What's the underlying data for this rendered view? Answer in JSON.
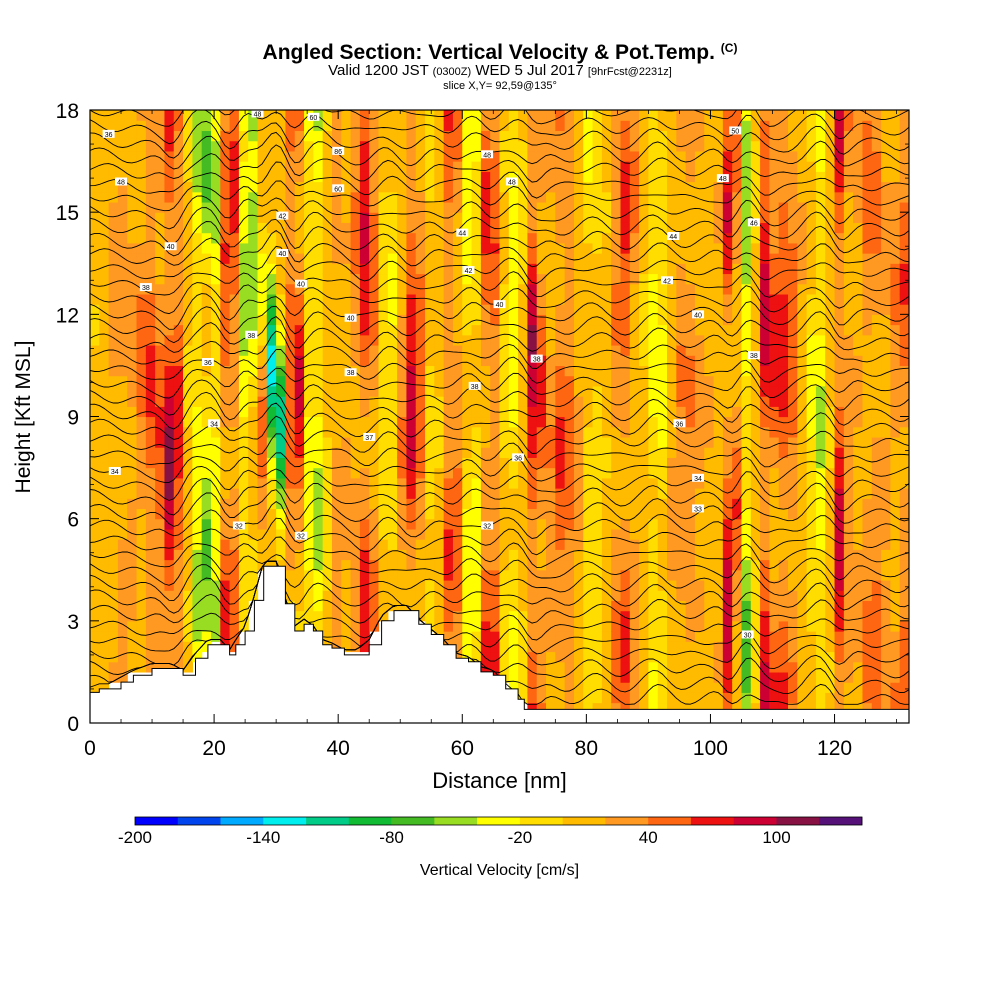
{
  "header": {
    "title": "Angled Section: Vertical Velocity & Pot.Temp.",
    "title_tag": "(C)",
    "valid_prefix": "Valid 1200 JST",
    "valid_zone": "(0300Z)",
    "valid_date": "WED 5 Jul 2017",
    "forecast_info": "[9hrFcst@2231z]",
    "slice_info": "slice X,Y= 92,59@135°"
  },
  "chart_data": {
    "type": "heatmap",
    "xlabel": "Distance [nm]",
    "ylabel": "Height [Kft MSL]",
    "xlim": [
      0,
      132
    ],
    "ylim": [
      0,
      18
    ],
    "x_ticks": [
      0,
      20,
      40,
      60,
      80,
      100,
      120
    ],
    "y_ticks": [
      0,
      3,
      6,
      9,
      12,
      15,
      18
    ],
    "colorbar": {
      "label": "Vertical Velocity [cm/s]",
      "min": -200,
      "max": 140,
      "step": 20,
      "tick_values": [
        -200,
        -140,
        -80,
        -20,
        40,
        100
      ],
      "colors": [
        "#0000ff",
        "#0044ee",
        "#00aaff",
        "#00eeee",
        "#00cc88",
        "#11bb33",
        "#44bb22",
        "#99dd22",
        "#ffff00",
        "#ffdd00",
        "#ffbb00",
        "#ff9922",
        "#ff6611",
        "#ee1111",
        "#cc0033",
        "#881144",
        "#551177"
      ]
    },
    "cells": {
      "x_step_nm": 1.5,
      "y_step_kft": 0.3,
      "note": "colour values reconstructed as vertical plume bands of vertical velocity (cm/s)"
    },
    "bands": [
      {
        "x": 5,
        "w": 2.0,
        "v": 25
      },
      {
        "x": 10,
        "w": 2.5,
        "v": 55
      },
      {
        "x": 13.5,
        "w": 1.3,
        "v": 95
      },
      {
        "x": 17.5,
        "w": 1.5,
        "v": -60
      },
      {
        "x": 20,
        "w": 1.2,
        "v": -70
      },
      {
        "x": 22.5,
        "w": 1.5,
        "v": 80
      },
      {
        "x": 25.5,
        "w": 1.5,
        "v": -90
      },
      {
        "x": 27.5,
        "w": 1.5,
        "v": 90
      },
      {
        "x": 30,
        "w": 1.6,
        "v": -160
      },
      {
        "x": 33,
        "w": 1.3,
        "v": 110
      },
      {
        "x": 36,
        "w": 2.0,
        "v": -60
      },
      {
        "x": 40,
        "w": 2.0,
        "v": 20
      },
      {
        "x": 44.5,
        "w": 1.8,
        "v": 80
      },
      {
        "x": 48,
        "w": 1.8,
        "v": -40
      },
      {
        "x": 52,
        "w": 2.0,
        "v": 85
      },
      {
        "x": 55,
        "w": 1.8,
        "v": -30
      },
      {
        "x": 58.5,
        "w": 1.8,
        "v": 60
      },
      {
        "x": 61.5,
        "w": 1.8,
        "v": -60
      },
      {
        "x": 64.5,
        "w": 1.8,
        "v": 75
      },
      {
        "x": 68,
        "w": 2.0,
        "v": -50
      },
      {
        "x": 71.5,
        "w": 1.3,
        "v": 95
      },
      {
        "x": 76.5,
        "w": 2.5,
        "v": 55
      },
      {
        "x": 81,
        "w": 2.0,
        "v": -30
      },
      {
        "x": 86,
        "w": 2.0,
        "v": 55
      },
      {
        "x": 91.5,
        "w": 1.5,
        "v": -50
      },
      {
        "x": 96,
        "w": 2.5,
        "v": 40
      },
      {
        "x": 103.5,
        "w": 1.2,
        "v": 100
      },
      {
        "x": 106,
        "w": 1.8,
        "v": -80
      },
      {
        "x": 108.5,
        "w": 1.5,
        "v": 90
      },
      {
        "x": 112,
        "w": 2.0,
        "v": 65
      },
      {
        "x": 117.5,
        "w": 1.5,
        "v": -55
      },
      {
        "x": 121,
        "w": 1.2,
        "v": 85
      },
      {
        "x": 126,
        "w": 2.5,
        "v": 40
      },
      {
        "x": 131,
        "w": 1.5,
        "v": 50
      }
    ],
    "terrain_kft": [
      [
        0,
        0.9
      ],
      [
        1.5,
        1.0
      ],
      [
        3,
        1.0
      ],
      [
        5,
        1.2
      ],
      [
        7,
        1.4
      ],
      [
        10,
        1.6
      ],
      [
        13,
        1.6
      ],
      [
        15,
        1.4
      ],
      [
        17,
        1.9
      ],
      [
        19,
        2.3
      ],
      [
        21,
        2.3
      ],
      [
        22.5,
        2.0
      ],
      [
        23.5,
        2.3
      ],
      [
        25,
        2.7
      ],
      [
        26.5,
        3.6
      ],
      [
        28,
        4.6
      ],
      [
        30,
        4.6
      ],
      [
        31.5,
        3.5
      ],
      [
        33,
        2.7
      ],
      [
        34.5,
        2.9
      ],
      [
        36,
        2.7
      ],
      [
        37.5,
        2.3
      ],
      [
        39,
        2.2
      ],
      [
        41,
        2.0
      ],
      [
        43,
        2.0
      ],
      [
        45,
        2.3
      ],
      [
        47,
        3.0
      ],
      [
        49,
        3.3
      ],
      [
        51,
        3.3
      ],
      [
        53,
        2.9
      ],
      [
        55,
        2.6
      ],
      [
        57,
        2.3
      ],
      [
        59,
        1.9
      ],
      [
        61,
        1.8
      ],
      [
        63,
        1.5
      ],
      [
        65,
        1.4
      ],
      [
        67,
        1.0
      ],
      [
        69,
        0.7
      ],
      [
        70,
        0.4
      ],
      [
        132,
        0.4
      ]
    ],
    "isentrope_levels": 42,
    "contour_labels": [
      {
        "x": 3,
        "y": 17.3,
        "text": "36"
      },
      {
        "x": 5,
        "y": 15.9,
        "text": "48"
      },
      {
        "x": 13,
        "y": 14.0,
        "text": "40"
      },
      {
        "x": 9,
        "y": 12.8,
        "text": "38"
      },
      {
        "x": 27,
        "y": 17.9,
        "text": "48"
      },
      {
        "x": 36,
        "y": 17.8,
        "text": "60"
      },
      {
        "x": 40,
        "y": 16.8,
        "text": "86"
      },
      {
        "x": 40,
        "y": 15.7,
        "text": "60"
      },
      {
        "x": 31,
        "y": 14.9,
        "text": "42"
      },
      {
        "x": 31,
        "y": 13.8,
        "text": "40"
      },
      {
        "x": 34,
        "y": 12.9,
        "text": "40"
      },
      {
        "x": 42,
        "y": 11.9,
        "text": "40"
      },
      {
        "x": 42,
        "y": 10.3,
        "text": "38"
      },
      {
        "x": 45,
        "y": 8.4,
        "text": "37"
      },
      {
        "x": 26,
        "y": 11.4,
        "text": "38"
      },
      {
        "x": 19,
        "y": 10.6,
        "text": "36"
      },
      {
        "x": 20,
        "y": 8.8,
        "text": "34"
      },
      {
        "x": 4,
        "y": 7.4,
        "text": "34"
      },
      {
        "x": 24,
        "y": 5.8,
        "text": "32"
      },
      {
        "x": 34,
        "y": 5.5,
        "text": "32"
      },
      {
        "x": 64,
        "y": 16.7,
        "text": "48"
      },
      {
        "x": 68,
        "y": 15.9,
        "text": "48"
      },
      {
        "x": 60,
        "y": 14.4,
        "text": "44"
      },
      {
        "x": 61,
        "y": 13.3,
        "text": "42"
      },
      {
        "x": 66,
        "y": 12.3,
        "text": "40"
      },
      {
        "x": 62,
        "y": 9.9,
        "text": "38"
      },
      {
        "x": 69,
        "y": 7.8,
        "text": "36"
      },
      {
        "x": 72,
        "y": 10.7,
        "text": "38"
      },
      {
        "x": 64,
        "y": 5.8,
        "text": "32"
      },
      {
        "x": 104,
        "y": 17.4,
        "text": "50"
      },
      {
        "x": 102,
        "y": 16.0,
        "text": "48"
      },
      {
        "x": 107,
        "y": 14.7,
        "text": "46"
      },
      {
        "x": 94,
        "y": 14.3,
        "text": "44"
      },
      {
        "x": 93,
        "y": 13.0,
        "text": "42"
      },
      {
        "x": 98,
        "y": 12.0,
        "text": "40"
      },
      {
        "x": 107,
        "y": 10.8,
        "text": "38"
      },
      {
        "x": 95,
        "y": 8.8,
        "text": "36"
      },
      {
        "x": 98,
        "y": 7.2,
        "text": "34"
      },
      {
        "x": 98,
        "y": 6.3,
        "text": "33"
      },
      {
        "x": 106,
        "y": 2.6,
        "text": "30"
      }
    ]
  }
}
